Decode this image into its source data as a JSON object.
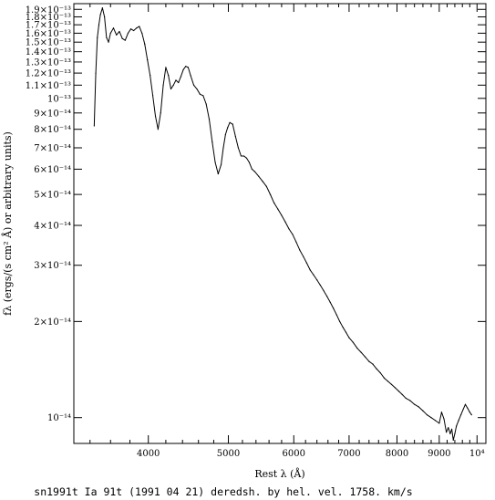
{
  "chart_data": {
    "type": "line",
    "title": "",
    "caption": "sn1991t Ia 91t (1991 04 21) deredsh. by hel. vel.  1758. km/s",
    "xlabel": "Rest λ (Å)",
    "ylabel": "fλ (ergs/(s cm² Å) or arbitrary units)",
    "x_scale": "log",
    "y_scale": "log",
    "xlim": [
      3250,
      10250
    ],
    "ylim": [
      8.3e-15,
      1.98e-13
    ],
    "grid": false,
    "x_ticks": [
      {
        "value": 4000,
        "label": "4000"
      },
      {
        "value": 5000,
        "label": "5000"
      },
      {
        "value": 6000,
        "label": "6000"
      },
      {
        "value": 7000,
        "label": "7000"
      },
      {
        "value": 8000,
        "label": "8000"
      },
      {
        "value": 9000,
        "label": "9000"
      },
      {
        "value": 10000,
        "label": "10⁴"
      }
    ],
    "x_minor_ticks": [
      3400,
      3600,
      3800,
      4200,
      4400,
      4600,
      4800,
      5200,
      5400,
      5600,
      5800,
      6200,
      6400,
      6600,
      6800,
      7200,
      7400,
      7600,
      7800,
      8200,
      8400,
      8600,
      8800,
      9200,
      9400,
      9600,
      9800
    ],
    "y_ticks": [
      {
        "value": 1.9e-13,
        "label": "1.9×10⁻¹³"
      },
      {
        "value": 1.8e-13,
        "label": "1.8×10⁻¹³"
      },
      {
        "value": 1.7e-13,
        "label": "1.7×10⁻¹³"
      },
      {
        "value": 1.6e-13,
        "label": "1.6×10⁻¹³"
      },
      {
        "value": 1.5e-13,
        "label": "1.5×10⁻¹³"
      },
      {
        "value": 1.4e-13,
        "label": "1.4×10⁻¹³"
      },
      {
        "value": 1.3e-13,
        "label": "1.3×10⁻¹³"
      },
      {
        "value": 1.2e-13,
        "label": "1.2×10⁻¹³"
      },
      {
        "value": 1.1e-13,
        "label": "1.1×10⁻¹³"
      },
      {
        "value": 1e-13,
        "label": "10⁻¹³"
      },
      {
        "value": 9e-14,
        "label": "9×10⁻¹⁴"
      },
      {
        "value": 8e-14,
        "label": "8×10⁻¹⁴"
      },
      {
        "value": 7e-14,
        "label": "7×10⁻¹⁴"
      },
      {
        "value": 6e-14,
        "label": "6×10⁻¹⁴"
      },
      {
        "value": 5e-14,
        "label": "5×10⁻¹⁴"
      },
      {
        "value": 4e-14,
        "label": "4×10⁻¹⁴"
      },
      {
        "value": 3e-14,
        "label": "3×10⁻¹⁴"
      },
      {
        "value": 2e-14,
        "label": "2×10⁻¹⁴"
      },
      {
        "value": 1e-14,
        "label": "10⁻¹⁴"
      }
    ],
    "series": [
      {
        "color": "#000000",
        "x": [
          3440,
          3455,
          3470,
          3485,
          3500,
          3520,
          3540,
          3560,
          3580,
          3600,
          3630,
          3660,
          3690,
          3720,
          3750,
          3780,
          3810,
          3840,
          3870,
          3900,
          3930,
          3960,
          3990,
          4020,
          4050,
          4080,
          4110,
          4140,
          4170,
          4200,
          4230,
          4260,
          4290,
          4320,
          4350,
          4380,
          4410,
          4440,
          4470,
          4500,
          4540,
          4580,
          4620,
          4660,
          4700,
          4740,
          4780,
          4820,
          4860,
          4900,
          4930,
          4960,
          4990,
          5020,
          5060,
          5100,
          5140,
          5180,
          5220,
          5260,
          5300,
          5340,
          5380,
          5440,
          5500,
          5560,
          5620,
          5680,
          5740,
          5800,
          5860,
          5920,
          5980,
          6040,
          6100,
          6160,
          6220,
          6280,
          6340,
          6400,
          6460,
          6520,
          6580,
          6640,
          6700,
          6760,
          6820,
          6880,
          6940,
          7000,
          7080,
          7160,
          7240,
          7320,
          7400,
          7480,
          7560,
          7640,
          7720,
          7800,
          7880,
          7960,
          8040,
          8120,
          8200,
          8300,
          8400,
          8500,
          8600,
          8700,
          8800,
          8900,
          9000,
          9060,
          9120,
          9180,
          9230,
          9280,
          9320,
          9360,
          9400,
          9440,
          9500,
          9560,
          9620,
          9680,
          9740,
          9800,
          9850
        ],
        "y": [
          8.2e-14,
          1.2e-13,
          1.55e-13,
          1.7e-13,
          1.83e-13,
          1.92e-13,
          1.8e-13,
          1.55e-13,
          1.5e-13,
          1.6e-13,
          1.66e-13,
          1.58e-13,
          1.62e-13,
          1.54e-13,
          1.52e-13,
          1.6e-13,
          1.65e-13,
          1.63e-13,
          1.66e-13,
          1.68e-13,
          1.6e-13,
          1.48e-13,
          1.32e-13,
          1.18e-13,
          1.02e-13,
          8.8e-14,
          8e-14,
          9e-14,
          1.1e-13,
          1.25e-13,
          1.18e-13,
          1.07e-13,
          1.1e-13,
          1.14e-13,
          1.12e-13,
          1.17e-13,
          1.23e-13,
          1.26e-13,
          1.25e-13,
          1.18e-13,
          1.1e-13,
          1.07e-13,
          1.03e-13,
          1.02e-13,
          9.6e-14,
          8.6e-14,
          7.3e-14,
          6.3e-14,
          5.8e-14,
          6.2e-14,
          7e-14,
          7.7e-14,
          8.1e-14,
          8.4e-14,
          8.3e-14,
          7.6e-14,
          7e-14,
          6.6e-14,
          6.6e-14,
          6.5e-14,
          6.3e-14,
          6e-14,
          5.9e-14,
          5.7e-14,
          5.5e-14,
          5.3e-14,
          5e-14,
          4.7e-14,
          4.5e-14,
          4.3e-14,
          4.1e-14,
          3.9e-14,
          3.75e-14,
          3.55e-14,
          3.35e-14,
          3.2e-14,
          3.05e-14,
          2.9e-14,
          2.8e-14,
          2.7e-14,
          2.6e-14,
          2.5e-14,
          2.4e-14,
          2.3e-14,
          2.2e-14,
          2.1e-14,
          2e-14,
          1.92e-14,
          1.85e-14,
          1.78e-14,
          1.72e-14,
          1.65e-14,
          1.6e-14,
          1.55e-14,
          1.5e-14,
          1.47e-14,
          1.42e-14,
          1.38e-14,
          1.33e-14,
          1.3e-14,
          1.27e-14,
          1.24e-14,
          1.21e-14,
          1.18e-14,
          1.15e-14,
          1.13e-14,
          1.1e-14,
          1.08e-14,
          1.05e-14,
          1.02e-14,
          1e-14,
          9.8e-15,
          9.6e-15,
          1.04e-14,
          9.9e-15,
          9e-15,
          9.3e-15,
          8.9e-15,
          9.2e-15,
          8.5e-15,
          8.9e-15,
          9.4e-15,
          9.8e-15,
          1.02e-14,
          1.06e-14,
          1.1e-14,
          1.07e-14,
          1.04e-14,
          1.02e-14
        ]
      }
    ]
  }
}
